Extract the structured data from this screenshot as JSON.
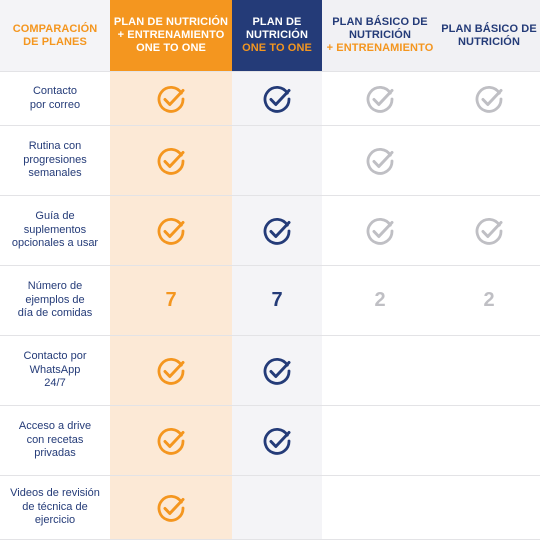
{
  "colors": {
    "orange": "#f4961f",
    "navy": "#243b78",
    "gray": "#bfbfc4",
    "label": "#243b78"
  },
  "header": {
    "comparison": {
      "line1": "COMPARACIÓN",
      "line2": "DE PLANES"
    },
    "plan1": {
      "line1": "PLAN DE NUTRICIÓN",
      "line2": "+ ENTRENAMIENTO",
      "line3": "ONE TO ONE"
    },
    "plan2": {
      "line1": "PLAN DE",
      "line2": "NUTRICIÓN",
      "line3": "ONE TO ONE"
    },
    "plan3": {
      "line1": "PLAN BÁSICO DE",
      "line2": "NUTRICIÓN",
      "line3": "+ ENTRENAMIENTO"
    },
    "plan4": {
      "line1": "PLAN BÁSICO DE",
      "line2": "NUTRICIÓN"
    }
  },
  "rows": [
    {
      "label": "Contacto por correo",
      "label_lines": [
        "Contacto",
        "por correo"
      ],
      "cells": [
        "check",
        "check",
        "check",
        "check"
      ]
    },
    {
      "label": "Rutina con progresiones semanales",
      "label_lines": [
        "Rutina con",
        "progresiones",
        "semanales"
      ],
      "cells": [
        "check",
        "",
        "check",
        ""
      ]
    },
    {
      "label": "Guía de suplementos opcionales a usar",
      "label_lines": [
        "Guía de",
        "suplementos",
        "opcionales a usar"
      ],
      "cells": [
        "check",
        "check",
        "check",
        "check"
      ]
    },
    {
      "label": "Número de ejemplos de día de comidas",
      "label_lines": [
        "Número de",
        "ejemplos de",
        "día de comidas"
      ],
      "cells": [
        "7",
        "7",
        "2",
        "2"
      ]
    },
    {
      "label": "Contacto por WhatsApp 24/7",
      "label_lines": [
        "Contacto por",
        "WhatsApp",
        "24/7"
      ],
      "cells": [
        "check",
        "check",
        "",
        ""
      ]
    },
    {
      "label": "Acceso a drive con recetas privadas",
      "label_lines": [
        "Acceso a drive",
        "con recetas",
        "privadas"
      ],
      "cells": [
        "check",
        "check",
        "",
        ""
      ]
    },
    {
      "label": "Videos de revisión de técnica de ejercicio",
      "label_lines": [
        "Videos de revisión",
        "de técnica de",
        "ejercicio"
      ],
      "cells": [
        "check",
        "",
        "",
        ""
      ]
    }
  ]
}
